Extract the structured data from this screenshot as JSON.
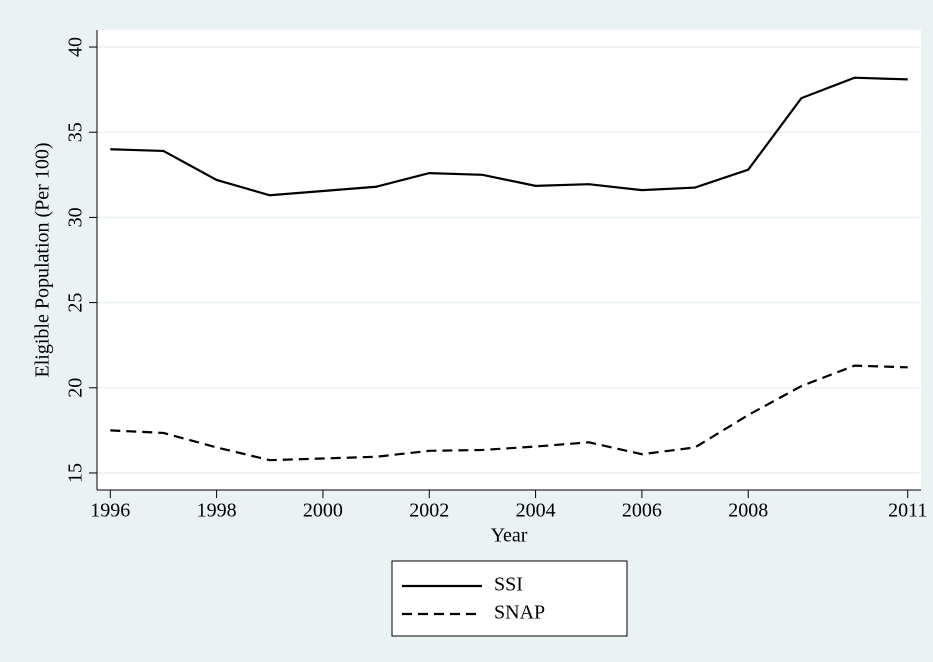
{
  "chart_data": {
    "type": "line",
    "y_label": "Eligible Population (Per 100)",
    "x_label": "Year",
    "x": [
      1996,
      1997,
      1998,
      1999,
      2000,
      2001,
      2002,
      2003,
      2004,
      2005,
      2006,
      2007,
      2008,
      2009,
      2010,
      2011
    ],
    "series": [
      {
        "name": "SSI",
        "color": "#000000",
        "dash": "solid",
        "values": [
          34.0,
          33.9,
          32.2,
          31.3,
          31.55,
          31.8,
          32.6,
          32.5,
          31.85,
          31.95,
          31.6,
          31.75,
          32.8,
          37.0,
          38.2,
          38.1
        ]
      },
      {
        "name": "SNAP",
        "color": "#000000",
        "dash": "dashed",
        "values": [
          17.5,
          17.35,
          16.5,
          15.75,
          15.85,
          15.95,
          16.3,
          16.35,
          16.55,
          16.8,
          16.1,
          16.5,
          18.4,
          20.1,
          21.3,
          21.2
        ]
      }
    ],
    "xlim": [
      1995.75,
      2011.25
    ],
    "xticks": [
      1996,
      1998,
      2000,
      2002,
      2004,
      2006,
      2008,
      2011
    ],
    "ylim": [
      14,
      41
    ],
    "yticks": [
      15,
      20,
      25,
      30,
      35,
      40
    ],
    "grid": true,
    "legend": "bottom"
  }
}
